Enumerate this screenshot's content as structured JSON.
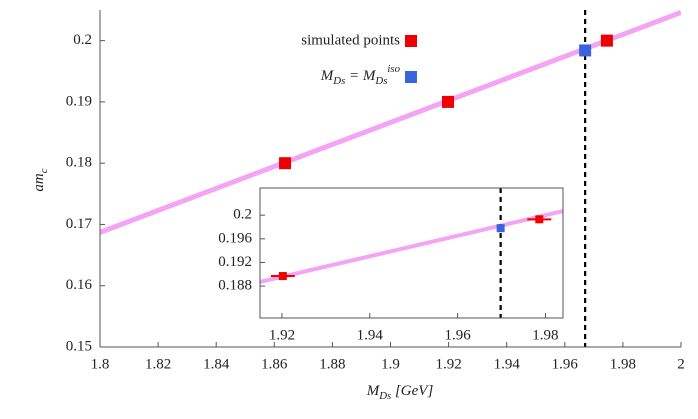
{
  "chart_data": [
    {
      "type": "scatter",
      "x_label": "MDs [GeV]",
      "y_label": "amc",
      "xlim": [
        1.8,
        2.0
      ],
      "ylim": [
        0.15,
        0.205
      ],
      "xticks": [
        1.8,
        1.82,
        1.84,
        1.86,
        1.88,
        1.9,
        1.92,
        1.94,
        1.96,
        1.98,
        2
      ],
      "yticks": [
        0.15,
        0.16,
        0.17,
        0.18,
        0.19,
        0.2
      ],
      "fit_line": {
        "x": [
          1.8,
          2.0
        ],
        "y": [
          0.1687,
          0.2046
        ],
        "color": "#f5a3f5"
      },
      "vline": {
        "x": 1.967,
        "color": "#000000",
        "style": "dashed"
      },
      "series": [
        {
          "name": "simulated points",
          "color": "#ee0000",
          "x": [
            1.8637,
            1.9198,
            1.9745
          ],
          "values": [
            0.18,
            0.19,
            0.2
          ]
        },
        {
          "name": "MDs = MDsiso",
          "color": "#3a63e0",
          "x": [
            1.967
          ],
          "values": [
            0.1984
          ]
        }
      ]
    },
    {
      "type": "scatter",
      "xlim": [
        1.915,
        1.984
      ],
      "ylim": [
        0.1826,
        0.2046
      ],
      "xticks": [
        1.92,
        1.94,
        1.96,
        1.98
      ],
      "yticks": [
        0.188,
        0.192,
        0.196,
        0.2
      ],
      "fit_line": {
        "x": [
          1.915,
          1.984
        ],
        "y": [
          0.1887,
          0.2007
        ],
        "color": "#f5a3f5"
      },
      "vline": {
        "x": 1.9698,
        "color": "#000000",
        "style": "dashed"
      },
      "series": [
        {
          "color": "#ee0000",
          "x": [
            1.9202,
            1.9786
          ],
          "values": [
            0.1897,
            0.1993
          ]
        },
        {
          "color": "#3a63e0",
          "x": [
            1.9698
          ],
          "values": [
            0.1978
          ]
        }
      ]
    }
  ]
}
